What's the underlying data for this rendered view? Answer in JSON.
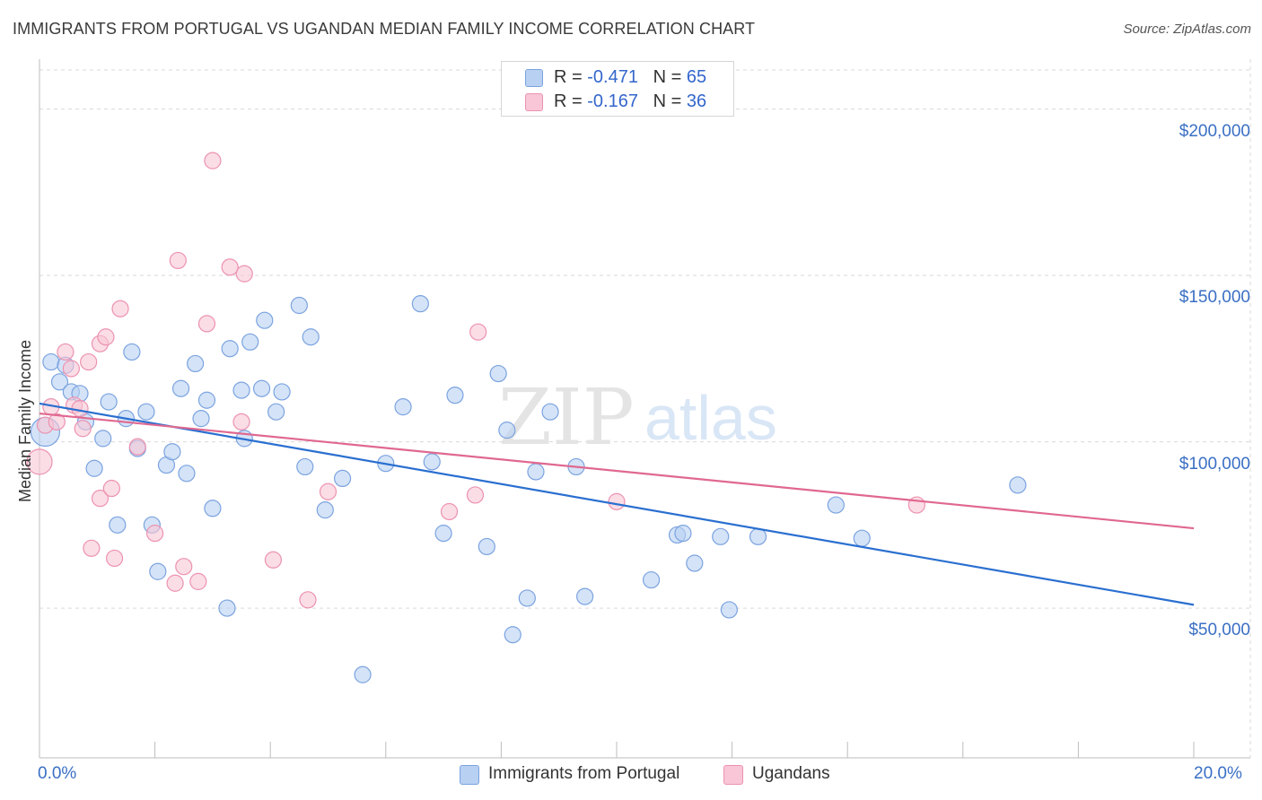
{
  "title": "IMMIGRANTS FROM PORTUGAL VS UGANDAN MEDIAN FAMILY INCOME CORRELATION CHART",
  "source": "Source: ZipAtlas.com",
  "watermark": {
    "zip": "ZIP",
    "atlas": "atlas"
  },
  "legend_top": [
    {
      "r_label": "R = ",
      "r_value": "-0.471",
      "n_label": "N = ",
      "n_value": "65"
    },
    {
      "r_label": "R = ",
      "r_value": "-0.167",
      "n_label": "N = ",
      "n_value": "36"
    }
  ],
  "colors": {
    "blue_fill": "#b8d0f2",
    "blue_stroke": "#7ba3e0",
    "blue_line": "#2a6fd0",
    "pink_fill": "#f8c6d6",
    "pink_stroke": "#ec92b0",
    "pink_line": "#e06890",
    "grid": "#d9d9d9",
    "axis_text": "#3a6fc4"
  },
  "chart_data": {
    "type": "scatter",
    "title": "IMMIGRANTS FROM PORTUGAL VS UGANDAN MEDIAN FAMILY INCOME CORRELATION CHART",
    "xlabel": "",
    "ylabel": "Median Family Income",
    "xlim": [
      0,
      20
    ],
    "ylim": [
      5000,
      215000
    ],
    "x_tick_labels": [
      "0.0%",
      "20.0%"
    ],
    "y_ticks": [
      50000,
      100000,
      150000,
      200000
    ],
    "y_tick_labels": [
      "$50,000",
      "$100,000",
      "$150,000",
      "$200,000"
    ],
    "series": [
      {
        "name": "Immigrants from Portugal",
        "color": "blue",
        "trend": {
          "x": [
            0,
            20
          ],
          "y": [
            111500,
            51000
          ]
        },
        "points": [
          {
            "x": 0.1,
            "y": 103000,
            "size": 16
          },
          {
            "x": 0.2,
            "y": 124000
          },
          {
            "x": 0.35,
            "y": 118000
          },
          {
            "x": 0.45,
            "y": 123000
          },
          {
            "x": 0.55,
            "y": 115000
          },
          {
            "x": 0.7,
            "y": 114500
          },
          {
            "x": 0.8,
            "y": 106000
          },
          {
            "x": 0.95,
            "y": 92000
          },
          {
            "x": 1.1,
            "y": 101000
          },
          {
            "x": 1.2,
            "y": 112000
          },
          {
            "x": 1.35,
            "y": 75000
          },
          {
            "x": 1.5,
            "y": 107000
          },
          {
            "x": 1.6,
            "y": 127000
          },
          {
            "x": 1.7,
            "y": 98000
          },
          {
            "x": 1.85,
            "y": 109000
          },
          {
            "x": 1.95,
            "y": 75000
          },
          {
            "x": 2.05,
            "y": 61000
          },
          {
            "x": 2.2,
            "y": 93000
          },
          {
            "x": 2.3,
            "y": 97000
          },
          {
            "x": 2.45,
            "y": 116000
          },
          {
            "x": 2.55,
            "y": 90500
          },
          {
            "x": 2.7,
            "y": 123500
          },
          {
            "x": 2.8,
            "y": 107000
          },
          {
            "x": 2.9,
            "y": 112500
          },
          {
            "x": 3.0,
            "y": 80000
          },
          {
            "x": 3.25,
            "y": 50000
          },
          {
            "x": 3.3,
            "y": 128000
          },
          {
            "x": 3.5,
            "y": 115500
          },
          {
            "x": 3.55,
            "y": 101000
          },
          {
            "x": 3.65,
            "y": 130000
          },
          {
            "x": 3.85,
            "y": 116000
          },
          {
            "x": 3.9,
            "y": 136500
          },
          {
            "x": 4.1,
            "y": 109000
          },
          {
            "x": 4.2,
            "y": 115000
          },
          {
            "x": 4.5,
            "y": 141000
          },
          {
            "x": 4.6,
            "y": 92500
          },
          {
            "x": 4.7,
            "y": 131500
          },
          {
            "x": 4.95,
            "y": 79500
          },
          {
            "x": 5.25,
            "y": 89000
          },
          {
            "x": 5.6,
            "y": 30000
          },
          {
            "x": 6.0,
            "y": 93500
          },
          {
            "x": 6.3,
            "y": 110500
          },
          {
            "x": 6.6,
            "y": 141500
          },
          {
            "x": 6.8,
            "y": 94000
          },
          {
            "x": 7.0,
            "y": 72500
          },
          {
            "x": 7.2,
            "y": 114000
          },
          {
            "x": 7.75,
            "y": 68500
          },
          {
            "x": 7.95,
            "y": 120500
          },
          {
            "x": 8.1,
            "y": 103500
          },
          {
            "x": 8.2,
            "y": 42000
          },
          {
            "x": 8.45,
            "y": 53000
          },
          {
            "x": 8.6,
            "y": 91000
          },
          {
            "x": 8.85,
            "y": 109000
          },
          {
            "x": 9.3,
            "y": 92500
          },
          {
            "x": 9.45,
            "y": 53500
          },
          {
            "x": 10.6,
            "y": 58500
          },
          {
            "x": 11.05,
            "y": 72000
          },
          {
            "x": 11.15,
            "y": 72500
          },
          {
            "x": 11.35,
            "y": 63500
          },
          {
            "x": 11.8,
            "y": 71500
          },
          {
            "x": 11.95,
            "y": 49500
          },
          {
            "x": 12.45,
            "y": 71500
          },
          {
            "x": 13.8,
            "y": 81000
          },
          {
            "x": 14.25,
            "y": 71000
          },
          {
            "x": 16.95,
            "y": 87000
          }
        ]
      },
      {
        "name": "Ugandans",
        "color": "pink",
        "trend": {
          "x": [
            0,
            20
          ],
          "y": [
            108500,
            74000
          ]
        },
        "points": [
          {
            "x": 0.0,
            "y": 94000,
            "size": 14
          },
          {
            "x": 0.1,
            "y": 105000
          },
          {
            "x": 0.2,
            "y": 110500
          },
          {
            "x": 0.3,
            "y": 106000
          },
          {
            "x": 0.45,
            "y": 127000
          },
          {
            "x": 0.55,
            "y": 122000
          },
          {
            "x": 0.6,
            "y": 111000
          },
          {
            "x": 0.7,
            "y": 110000
          },
          {
            "x": 0.75,
            "y": 104000
          },
          {
            "x": 0.85,
            "y": 124000
          },
          {
            "x": 0.9,
            "y": 68000
          },
          {
            "x": 1.05,
            "y": 129500
          },
          {
            "x": 1.05,
            "y": 83000
          },
          {
            "x": 1.15,
            "y": 131500
          },
          {
            "x": 1.25,
            "y": 86000
          },
          {
            "x": 1.3,
            "y": 65000
          },
          {
            "x": 1.4,
            "y": 140000
          },
          {
            "x": 1.7,
            "y": 98500
          },
          {
            "x": 2.0,
            "y": 72500
          },
          {
            "x": 2.35,
            "y": 57500
          },
          {
            "x": 2.4,
            "y": 154500
          },
          {
            "x": 2.5,
            "y": 62500
          },
          {
            "x": 2.75,
            "y": 58000
          },
          {
            "x": 2.9,
            "y": 135500
          },
          {
            "x": 3.0,
            "y": 184500
          },
          {
            "x": 3.3,
            "y": 152500
          },
          {
            "x": 3.5,
            "y": 106000
          },
          {
            "x": 3.55,
            "y": 150500
          },
          {
            "x": 4.05,
            "y": 64500
          },
          {
            "x": 4.65,
            "y": 52500
          },
          {
            "x": 5.0,
            "y": 85000
          },
          {
            "x": 7.1,
            "y": 79000
          },
          {
            "x": 7.6,
            "y": 133000
          },
          {
            "x": 10.0,
            "y": 82000
          },
          {
            "x": 15.2,
            "y": 81000
          },
          {
            "x": 7.55,
            "y": 84000
          }
        ]
      }
    ],
    "legend": [
      "Immigrants from Portugal",
      "Ugandans"
    ]
  }
}
